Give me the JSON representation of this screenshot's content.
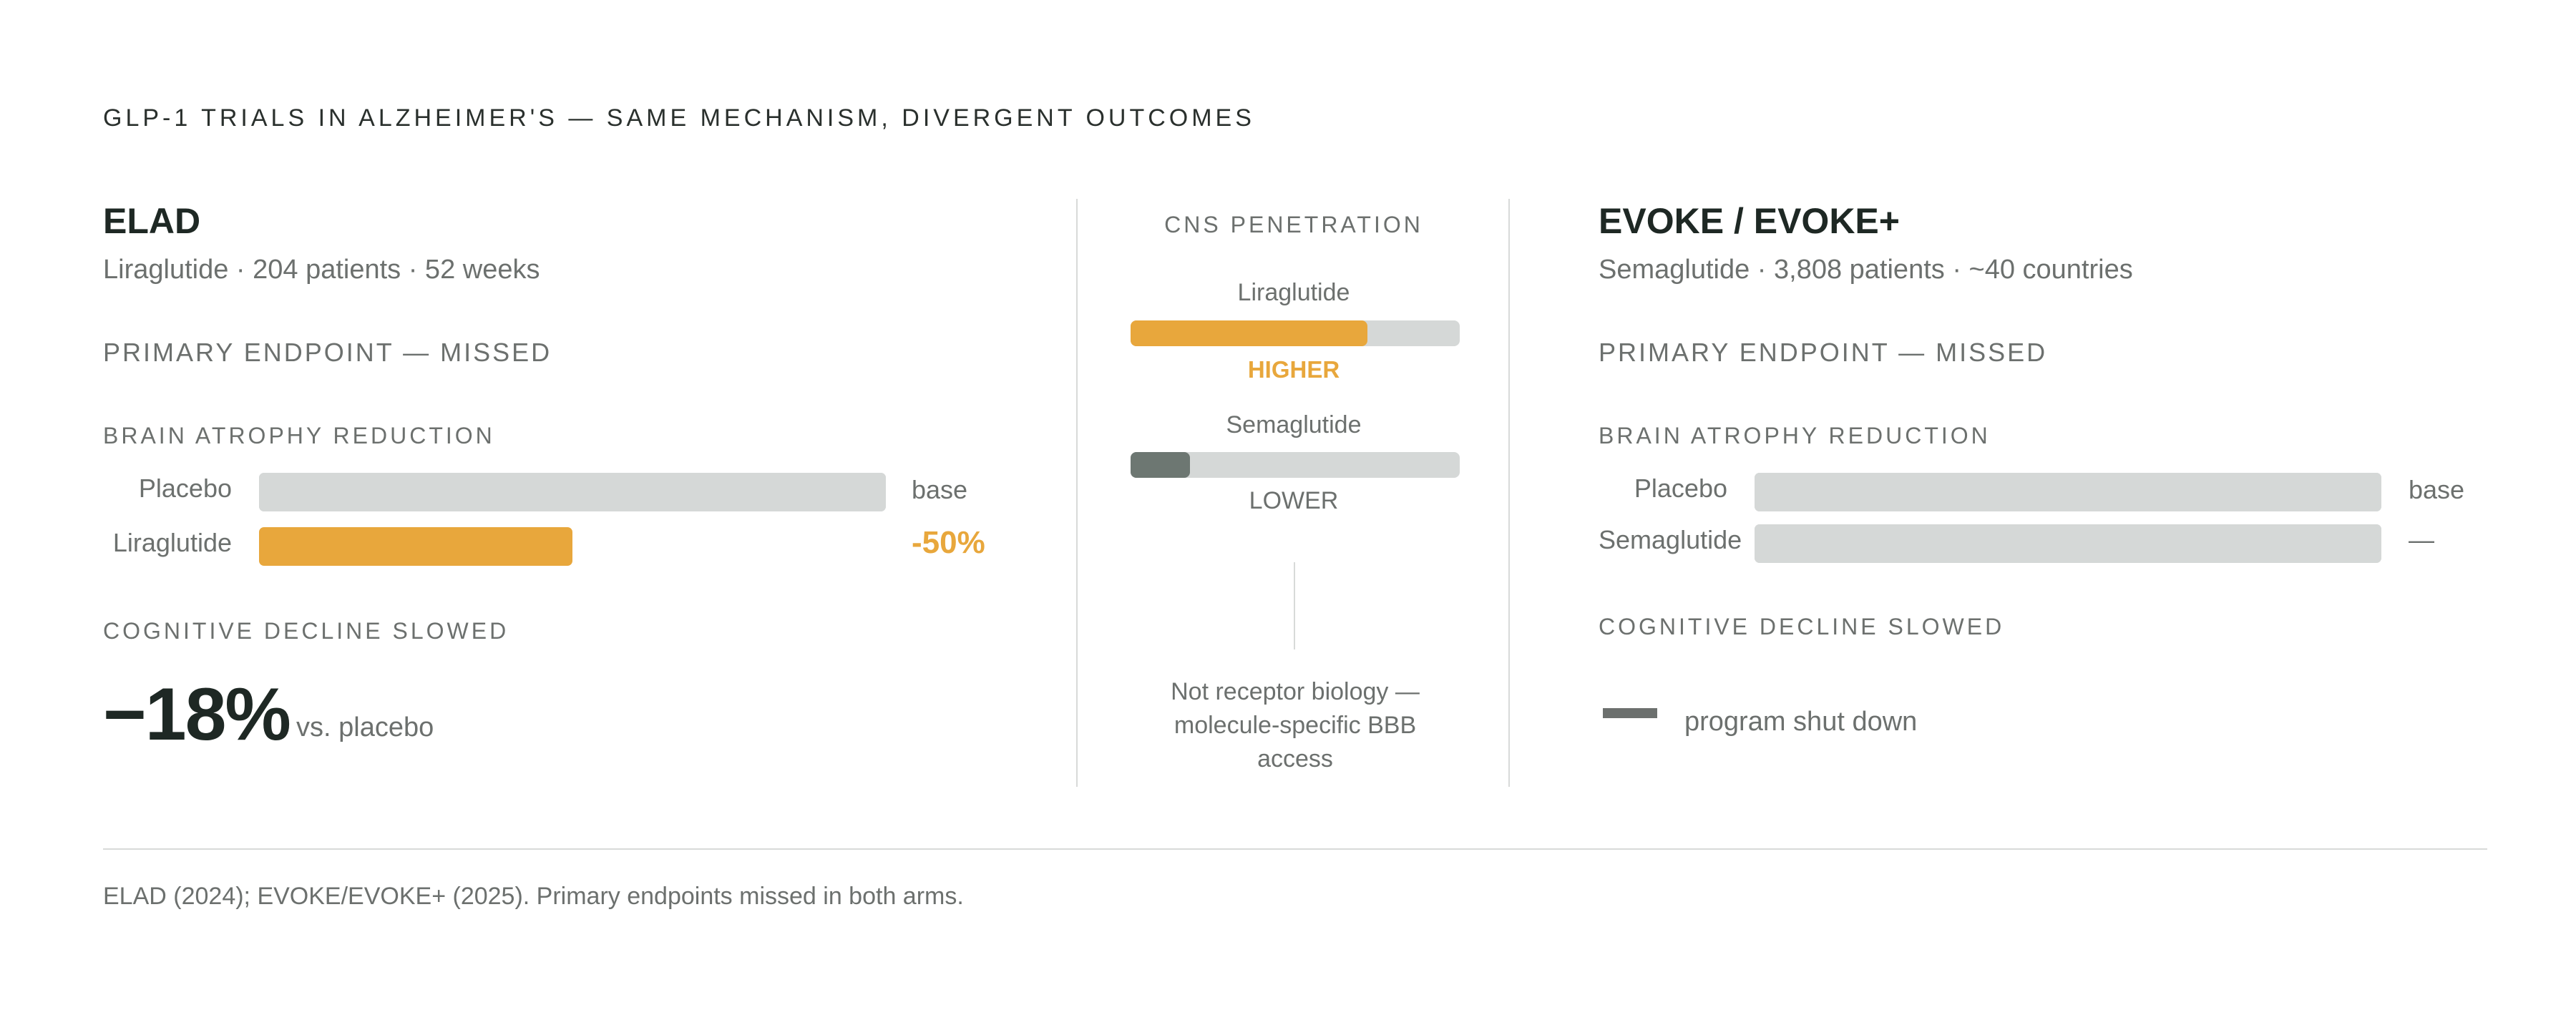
{
  "headline": "GLP-1 TRIALS IN ALZHEIMER'S — SAME MECHANISM, DIVERGENT OUTCOMES",
  "colors": {
    "accent": "#e8a73c",
    "track": "#d5d8d7",
    "dark_fill": "#6d7772",
    "text_dark": "#1e2824",
    "text_muted": "#6c706e"
  },
  "left": {
    "title": "ELAD",
    "subtitle": "Liraglutide · 204 patients · 52 weeks",
    "endpoint": "PRIMARY ENDPOINT — MISSED",
    "atrophy_label": "BRAIN ATROPHY REDUCTION",
    "bars": [
      {
        "label": "Placebo",
        "value_text": "base"
      },
      {
        "label": "Liraglutide",
        "value_text": "-50%"
      }
    ],
    "cognitive_label": "COGNITIVE DECLINE SLOWED",
    "cognitive_value": "−18%",
    "cognitive_note": "vs. placebo"
  },
  "center": {
    "title": "CNS PENETRATION",
    "items": [
      {
        "label": "Liraglutide",
        "level": "HIGHER"
      },
      {
        "label": "Semaglutide",
        "level": "LOWER"
      }
    ],
    "note": "Not receptor biology — molecule-specific BBB access"
  },
  "right": {
    "title": "EVOKE / EVOKE+",
    "subtitle": "Semaglutide · 3,808 patients · ~40 countries",
    "endpoint": "PRIMARY ENDPOINT — MISSED",
    "atrophy_label": "BRAIN ATROPHY REDUCTION",
    "bars": [
      {
        "label": "Placebo",
        "value_text": "base"
      },
      {
        "label": "Semaglutide",
        "value_text": "—"
      }
    ],
    "cognitive_label": "COGNITIVE DECLINE SLOWED",
    "cognitive_note": "program shut down"
  },
  "footnote": "ELAD (2024); EVOKE/EVOKE+ (2025). Primary endpoints missed in both arms.",
  "chart_data": [
    {
      "type": "bar",
      "title": "BRAIN ATROPHY REDUCTION",
      "categories": [
        "Placebo",
        "Liraglutide"
      ],
      "values": [
        1.0,
        0.5
      ],
      "value_labels": [
        "base",
        "-50%"
      ]
    },
    {
      "type": "bar",
      "title": "CNS PENETRATION",
      "categories": [
        "Liraglutide",
        "Semaglutide"
      ],
      "values": [
        0.72,
        0.18
      ],
      "value_labels": [
        "HIGHER",
        "LOWER"
      ]
    },
    {
      "type": "bar",
      "title": "BRAIN ATROPHY REDUCTION",
      "categories": [
        "Placebo",
        "Semaglutide"
      ],
      "values": [
        1.0,
        1.0
      ],
      "value_labels": [
        "base",
        "—"
      ]
    }
  ]
}
